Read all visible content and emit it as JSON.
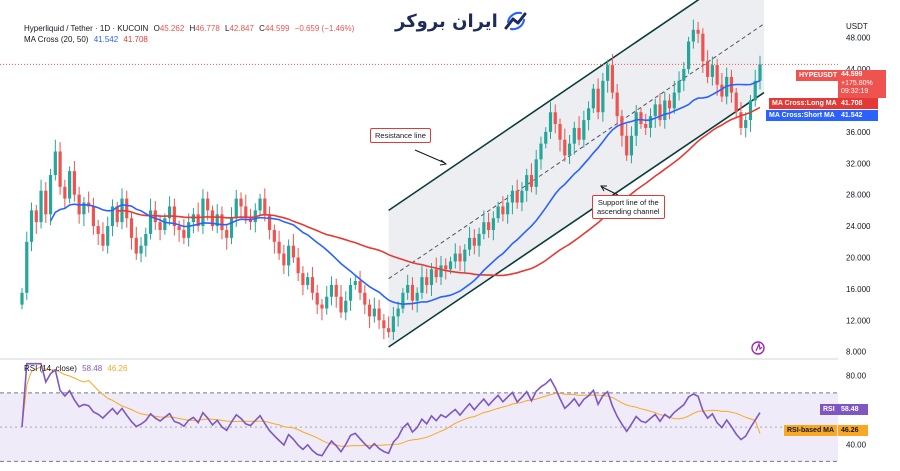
{
  "header": {
    "symbol": "Hyperliquid / Tether · 1D · KUCOIN",
    "o_label": "O",
    "o": "45.262",
    "h_label": "H",
    "h": "46.778",
    "l_label": "L",
    "l": "42.847",
    "c_label": "C",
    "c": "44.599",
    "change": "−0.659 (−1.46%)",
    "ma_name": "MA Cross (20, 50)",
    "ma_short": "41.542",
    "ma_long": "41.708",
    "rsi_name": "RSI (14, close)",
    "rsi_value": "58.48",
    "rsi_ma_value": "46.26"
  },
  "brand": {
    "text": "ایران بروکر"
  },
  "currency": "USDT",
  "price_labels": {
    "symbol_tag": "HYPEUSDT",
    "price": "44.599",
    "pct": "+175.80%",
    "countdown": "09:32:19",
    "long_tag": "MA Cross:Long MA",
    "long_val": "41.708",
    "short_tag": "MA Cross:Short MA",
    "short_val": "41.542",
    "rsi_tag": "RSI",
    "rsi_val": "58.48",
    "rsi_ma_tag": "RSI-based MA",
    "rsi_ma_val": "46.26"
  },
  "annotations": {
    "resistance": "Resistance line",
    "support_1": "Support line of the",
    "support_2": "ascending channel"
  },
  "colors": {
    "up": "#26a69a",
    "down": "#ef5350",
    "ma_short": "#2962ff",
    "ma_long": "#e53935",
    "rsi": "#7e57c2",
    "rsi_ma": "#f9a825",
    "channel": "#0a3d3a",
    "price_line": "#ef5350"
  },
  "chart_data": [
    {
      "type": "candlestick",
      "title": "Hyperliquid / Tether · 1D · KUCOIN",
      "y_axis_ticks": [
        "48.000",
        "44.000",
        "40.000",
        "36.000",
        "32.000",
        "28.000",
        "24.000",
        "20.000",
        "16.000",
        "12.000",
        "8.000"
      ],
      "ylim": [
        7.2,
        50.5
      ],
      "last_price": 44.599,
      "ma_short_last": 41.542,
      "ma_long_last": 41.708,
      "close_series": [
        15.5,
        22.0,
        26.0,
        24.5,
        28.5,
        25.5,
        30.5,
        33.5,
        29.0,
        27.5,
        31.0,
        28.0,
        25.5,
        27.0,
        26.5,
        24.0,
        23.0,
        21.5,
        24.0,
        26.5,
        24.5,
        27.5,
        25.0,
        22.5,
        20.5,
        21.5,
        23.0,
        26.0,
        24.5,
        23.5,
        25.0,
        26.5,
        24.0,
        23.5,
        22.5,
        24.5,
        25.5,
        24.0,
        27.5,
        26.0,
        24.0,
        25.5,
        23.5,
        22.5,
        25.0,
        27.5,
        26.5,
        25.0,
        24.5,
        26.0,
        27.5,
        25.5,
        23.5,
        22.0,
        20.5,
        19.0,
        21.5,
        20.0,
        18.0,
        16.5,
        17.5,
        15.5,
        14.0,
        13.5,
        15.0,
        16.5,
        15.0,
        13.0,
        14.5,
        16.5,
        17.0,
        15.5,
        14.0,
        12.5,
        13.5,
        12.0,
        11.0,
        10.5,
        12.5,
        13.5,
        15.5,
        16.5,
        14.5,
        15.5,
        17.5,
        16.5,
        18.5,
        17.5,
        19.0,
        18.5,
        19.5,
        20.5,
        19.5,
        21.0,
        22.5,
        21.5,
        23.0,
        24.5,
        23.5,
        25.0,
        26.5,
        25.5,
        27.0,
        28.5,
        27.0,
        28.5,
        30.5,
        29.0,
        32.5,
        34.5,
        36.0,
        38.5,
        37.0,
        35.0,
        33.0,
        34.5,
        36.5,
        35.0,
        37.5,
        39.0,
        41.5,
        38.5,
        42.5,
        44.5,
        41.0,
        38.0,
        35.5,
        33.0,
        35.5,
        38.5,
        37.0,
        36.5,
        38.0,
        39.5,
        37.5,
        40.0,
        39.0,
        41.0,
        42.5,
        44.0,
        47.5,
        49.0,
        48.5,
        45.0,
        43.0,
        44.5,
        42.0,
        40.5,
        43.0,
        41.0,
        38.5,
        36.5,
        37.5,
        40.0,
        42.5,
        44.599
      ]
    },
    {
      "type": "line",
      "title": "RSI (14, close)",
      "y_axis_ticks": [
        "80.00",
        "40.00"
      ],
      "ylim": [
        25,
        88
      ],
      "upper_band": 70,
      "lower_band": 30,
      "series": [
        {
          "name": "RSI",
          "last": 58.48
        },
        {
          "name": "RSI-based MA",
          "last": 46.26
        }
      ]
    }
  ]
}
